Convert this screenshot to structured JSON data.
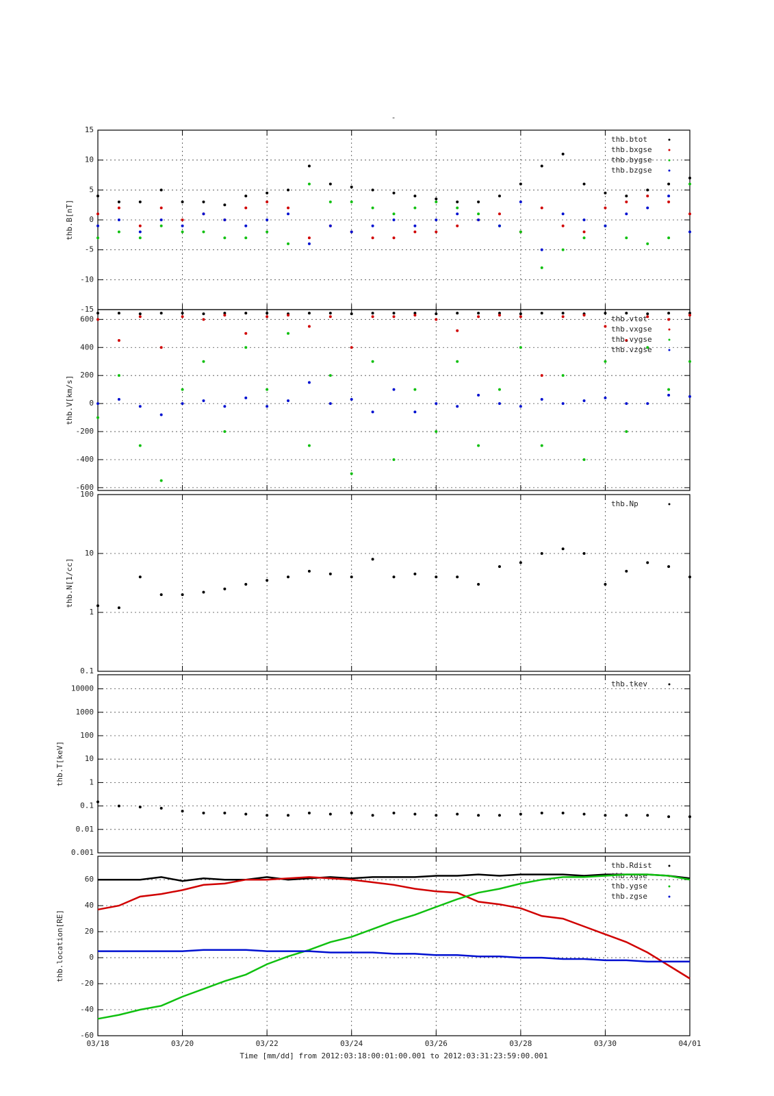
{
  "title": "-",
  "chart_data": [
    {
      "type": "scatter",
      "ylabel": "thb.B[nT]",
      "xlim": [
        0,
        14
      ],
      "xticks": [
        0,
        2,
        4,
        6,
        8,
        10,
        12,
        14
      ],
      "ylim": [
        -15,
        15
      ],
      "yticks": [
        -15,
        -10,
        -5,
        0,
        5,
        10,
        15
      ],
      "grid": true,
      "legend": "upper right",
      "x": [
        0,
        0.5,
        1,
        1.5,
        2,
        2.5,
        3,
        3.5,
        4,
        4.5,
        5,
        5.5,
        6,
        6.5,
        7,
        7.5,
        8,
        8.5,
        9,
        9.5,
        10,
        10.5,
        11,
        11.5,
        12,
        12.5,
        13,
        13.5,
        14
      ],
      "series": [
        {
          "name": "thb.btot",
          "color": "#000000",
          "values": [
            4,
            3,
            3,
            5,
            3,
            3,
            2.5,
            4,
            4.5,
            5,
            9,
            6,
            5.5,
            5,
            4.5,
            4,
            3.5,
            3,
            3,
            4,
            6,
            9,
            11,
            6,
            4.5,
            4,
            5,
            6,
            7
          ]
        },
        {
          "name": "thb.bxgse",
          "color": "#d00000",
          "values": [
            1,
            2,
            -1,
            2,
            0,
            1,
            0,
            2,
            3,
            2,
            -3,
            -1,
            -2,
            -3,
            -3,
            -2,
            -2,
            -1,
            0,
            1,
            -2,
            2,
            -1,
            -2,
            2,
            3,
            4,
            3,
            1
          ]
        },
        {
          "name": "thb.bygse",
          "color": "#10c010",
          "values": [
            -3,
            -2,
            -3,
            -1,
            -2,
            -2,
            -3,
            -3,
            -2,
            -4,
            6,
            3,
            3,
            2,
            1,
            2,
            3,
            2,
            1,
            -1,
            -2,
            -8,
            -5,
            -3,
            -1,
            -3,
            -4,
            -3,
            6
          ]
        },
        {
          "name": "thb.bzgse",
          "color": "#0010d0",
          "values": [
            -1,
            0,
            -2,
            0,
            -1,
            1,
            0,
            -1,
            0,
            1,
            -4,
            -1,
            -2,
            -1,
            0,
            -1,
            0,
            1,
            0,
            -1,
            3,
            -5,
            1,
            0,
            -1,
            1,
            2,
            4,
            -2
          ]
        }
      ]
    },
    {
      "type": "scatter",
      "ylabel": "thb.V[km/s]",
      "xlim": [
        0,
        14
      ],
      "xticks": [
        0,
        2,
        4,
        6,
        8,
        10,
        12,
        14
      ],
      "ylim": [
        -620,
        670
      ],
      "yticks": [
        -600,
        -400,
        -200,
        0,
        200,
        400,
        600
      ],
      "grid": true,
      "legend": "upper right",
      "x": [
        0,
        0.5,
        1,
        1.5,
        2,
        2.5,
        3,
        3.5,
        4,
        4.5,
        5,
        5.5,
        6,
        6.5,
        7,
        7.5,
        8,
        8.5,
        9,
        9.5,
        10,
        10.5,
        11,
        11.5,
        12,
        12.5,
        13,
        13.5,
        14
      ],
      "series": [
        {
          "name": "thb.vtot",
          "color": "#000000",
          "values": [
            645,
            645,
            640,
            645,
            645,
            640,
            645,
            645,
            645,
            640,
            645,
            645,
            640,
            645,
            645,
            645,
            640,
            645,
            645,
            645,
            640,
            645,
            645,
            640,
            645,
            645,
            640,
            645,
            645
          ]
        },
        {
          "name": "thb.vxgse",
          "color": "#d00000",
          "values": [
            600,
            450,
            620,
            400,
            620,
            600,
            630,
            500,
            620,
            630,
            550,
            620,
            400,
            620,
            620,
            630,
            600,
            520,
            620,
            630,
            620,
            200,
            620,
            630,
            550,
            450,
            620,
            600,
            630
          ]
        },
        {
          "name": "thb.vygse",
          "color": "#10c010",
          "values": [
            -100,
            200,
            -300,
            -550,
            100,
            300,
            -200,
            400,
            100,
            500,
            -300,
            200,
            -500,
            300,
            -400,
            100,
            -200,
            300,
            -300,
            100,
            400,
            -300,
            200,
            -400,
            300,
            -200,
            400,
            100,
            300
          ]
        },
        {
          "name": "thb.vzgse",
          "color": "#0010d0",
          "values": [
            0,
            30,
            -20,
            -80,
            0,
            20,
            -20,
            40,
            -20,
            20,
            150,
            0,
            30,
            -60,
            100,
            -60,
            0,
            -20,
            60,
            0,
            -20,
            30,
            0,
            20,
            40,
            0,
            0,
            60,
            50
          ]
        }
      ]
    },
    {
      "type": "scatter",
      "ylabel": "thb.N[1/cc]",
      "xlim": [
        0,
        14
      ],
      "xticks": [
        0,
        2,
        4,
        6,
        8,
        10,
        12,
        14
      ],
      "ylim": [
        0.1,
        100
      ],
      "yticks": [
        0.1,
        1,
        10,
        100
      ],
      "log": true,
      "grid": true,
      "legend": "upper right",
      "x": [
        0,
        0.5,
        1,
        1.5,
        2,
        2.5,
        3,
        3.5,
        4,
        4.5,
        5,
        5.5,
        6,
        6.5,
        7,
        7.5,
        8,
        8.5,
        9,
        9.5,
        10,
        10.5,
        11,
        11.5,
        12,
        12.5,
        13,
        13.5,
        14
      ],
      "series": [
        {
          "name": "thb.Np",
          "color": "#000000",
          "values": [
            1.3,
            1.2,
            4,
            2,
            2,
            2.2,
            2.5,
            3,
            3.5,
            4,
            5,
            4.5,
            4,
            8,
            4,
            4.5,
            4,
            4,
            3,
            6,
            7,
            10,
            12,
            10,
            3,
            5,
            7,
            6,
            4
          ]
        }
      ]
    },
    {
      "type": "scatter",
      "ylabel": "thb.T[keV]",
      "xlim": [
        0,
        14
      ],
      "xticks": [
        0,
        2,
        4,
        6,
        8,
        10,
        12,
        14
      ],
      "ylim": [
        0.001,
        40000
      ],
      "yticks": [
        0.001,
        0.01,
        0.1,
        1,
        10,
        100,
        1000,
        10000
      ],
      "log": true,
      "grid": true,
      "legend": "upper right",
      "x": [
        0,
        0.5,
        1,
        1.5,
        2,
        2.5,
        3,
        3.5,
        4,
        4.5,
        5,
        5.5,
        6,
        6.5,
        7,
        7.5,
        8,
        8.5,
        9,
        9.5,
        10,
        10.5,
        11,
        11.5,
        12,
        12.5,
        13,
        13.5,
        14
      ],
      "series": [
        {
          "name": "thb.tkev",
          "color": "#000000",
          "values": [
            0.15,
            0.1,
            0.09,
            0.08,
            0.06,
            0.05,
            0.05,
            0.045,
            0.04,
            0.04,
            0.05,
            0.045,
            0.05,
            0.04,
            0.05,
            0.045,
            0.04,
            0.045,
            0.04,
            0.04,
            0.045,
            0.05,
            0.05,
            0.045,
            0.04,
            0.04,
            0.04,
            0.035,
            0.035
          ]
        }
      ]
    },
    {
      "type": "line",
      "ylabel": "thb.location[RE]",
      "xlabel": "Time [mm/dd]  from 2012:03:18:00:01:00.001  to  2012:03:31:23:59:00.001",
      "xlim": [
        0,
        14
      ],
      "xticks": [
        {
          "value": 0,
          "label": "03/18"
        },
        {
          "value": 2,
          "label": "03/20"
        },
        {
          "value": 4,
          "label": "03/22"
        },
        {
          "value": 6,
          "label": "03/24"
        },
        {
          "value": 8,
          "label": "03/26"
        },
        {
          "value": 10,
          "label": "03/28"
        },
        {
          "value": 12,
          "label": "03/30"
        },
        {
          "value": 14,
          "label": "04/01"
        }
      ],
      "ylim": [
        -60,
        78
      ],
      "yticks": [
        -60,
        -40,
        -20,
        0,
        20,
        40,
        60
      ],
      "grid": true,
      "legend": "upper right",
      "x": [
        0,
        0.5,
        1,
        1.5,
        2,
        2.5,
        3,
        3.5,
        4,
        4.5,
        5,
        5.5,
        6,
        6.5,
        7,
        7.5,
        8,
        8.5,
        9,
        9.5,
        10,
        10.5,
        11,
        11.5,
        12,
        12.5,
        13,
        13.5,
        14
      ],
      "series": [
        {
          "name": "thb.Rdist",
          "color": "#000000",
          "values": [
            60,
            60,
            60,
            62,
            59,
            61,
            60,
            60,
            62,
            60,
            61,
            62,
            61,
            62,
            62,
            62,
            63,
            63,
            64,
            63,
            64,
            64,
            64,
            63,
            64,
            64,
            64,
            63,
            61
          ]
        },
        {
          "name": "thb.xgse",
          "color": "#d00000",
          "values": [
            37,
            40,
            47,
            49,
            52,
            56,
            57,
            60,
            60,
            61,
            62,
            61,
            60,
            58,
            56,
            53,
            51,
            50,
            43,
            41,
            38,
            32,
            30,
            24,
            18,
            12,
            4,
            -6,
            -16
          ]
        },
        {
          "name": "thb.ygse",
          "color": "#10c010",
          "values": [
            -47,
            -44,
            -40,
            -37,
            -30,
            -24,
            -18,
            -13,
            -5,
            1,
            6,
            12,
            16,
            22,
            28,
            33,
            39,
            45,
            50,
            53,
            57,
            60,
            62,
            62,
            63,
            64,
            64,
            63,
            60
          ]
        },
        {
          "name": "thb.zgse",
          "color": "#0010d0",
          "values": [
            5,
            5,
            5,
            5,
            5,
            6,
            6,
            6,
            5,
            5,
            5,
            4,
            4,
            4,
            3,
            3,
            2,
            2,
            1,
            1,
            0,
            0,
            -1,
            -1,
            -2,
            -2,
            -3,
            -3,
            -3
          ]
        }
      ]
    }
  ]
}
